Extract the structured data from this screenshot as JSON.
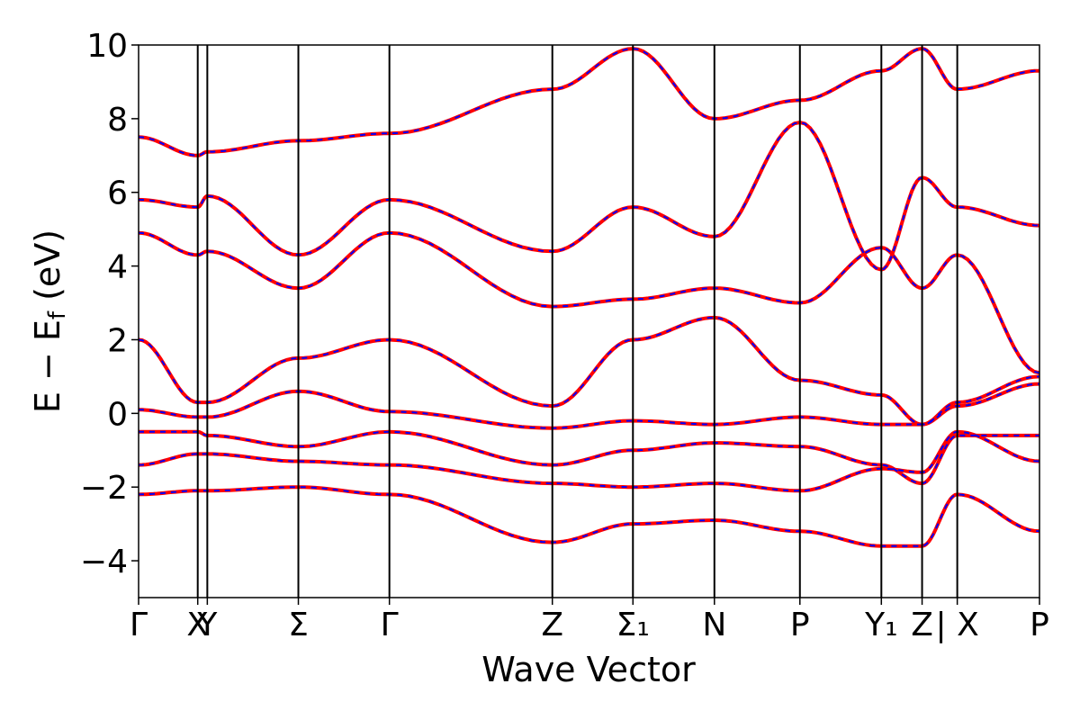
{
  "chart_data": {
    "type": "line",
    "xlabel": "Wave Vector",
    "ylabel": "E − E_f (eV)",
    "ylabel_main": "E − E",
    "ylabel_sub": "f",
    "ylabel_unit": " (eV)",
    "ylim": [
      -5,
      10
    ],
    "yticks": [
      {
        "value": 10,
        "label": "10"
      },
      {
        "value": 8,
        "label": "8"
      },
      {
        "value": 6,
        "label": "6"
      },
      {
        "value": 4,
        "label": "4"
      },
      {
        "value": 2,
        "label": "2"
      },
      {
        "value": 0,
        "label": "0"
      },
      {
        "value": -2,
        "label": "−2"
      },
      {
        "value": -4,
        "label": "−4"
      }
    ],
    "kpoints": [
      {
        "pos": 0.0,
        "label": "Γ"
      },
      {
        "pos": 0.0617,
        "label": "X"
      },
      {
        "pos": 0.0717,
        "label": "Y"
      },
      {
        "pos": 0.1667,
        "label": "Σ"
      },
      {
        "pos": 0.2617,
        "label": "Γ"
      },
      {
        "pos": 0.4317,
        "label": "Z"
      },
      {
        "pos": 0.5158,
        "label": "Σ₁"
      },
      {
        "pos": 0.6008,
        "label": "N"
      },
      {
        "pos": 0.69,
        "label": "P"
      },
      {
        "pos": 0.775,
        "label": "Y₁"
      },
      {
        "pos": 0.8175,
        "label": "Z"
      },
      {
        "pos": 0.8542,
        "label": "| X"
      },
      {
        "pos": 0.94,
        "label": "P"
      }
    ],
    "xlim": [
      0.0,
      0.94
    ],
    "grid": false,
    "series": [
      {
        "color": "#ff0000",
        "style": "solid",
        "bands": [
          {
            "x": [
              0.0,
              0.0617,
              0.0717,
              0.1667,
              0.2617,
              0.4317,
              0.5158,
              0.6008,
              0.69,
              0.775,
              0.8175,
              0.8542,
              0.94
            ],
            "y": [
              -2.2,
              -2.1,
              -2.1,
              -2.0,
              -2.2,
              -3.5,
              -3.0,
              -2.9,
              -3.2,
              -3.6,
              -3.6,
              -2.2,
              -3.2
            ]
          },
          {
            "x": [
              0.0,
              0.0617,
              0.0717,
              0.1667,
              0.2617,
              0.4317,
              0.5158,
              0.6008,
              0.69,
              0.775,
              0.8175,
              0.8542,
              0.94
            ],
            "y": [
              -1.4,
              -1.1,
              -1.1,
              -1.3,
              -1.4,
              -1.9,
              -2.0,
              -1.9,
              -2.1,
              -1.5,
              -1.6,
              -0.5,
              -1.3
            ]
          },
          {
            "x": [
              0.0,
              0.0617,
              0.0717,
              0.1667,
              0.2617,
              0.4317,
              0.5158,
              0.6008,
              0.69,
              0.775,
              0.8175,
              0.8542,
              0.94
            ],
            "y": [
              -0.5,
              -0.5,
              -0.6,
              -0.9,
              -0.5,
              -1.4,
              -1.0,
              -0.8,
              -0.9,
              -1.4,
              -1.9,
              -0.6,
              -0.6
            ]
          },
          {
            "x": [
              0.0,
              0.0617,
              0.0717,
              0.1667,
              0.2617,
              0.4317,
              0.5158,
              0.6008,
              0.69,
              0.775,
              0.8175,
              0.8542,
              0.94
            ],
            "y": [
              0.1,
              -0.1,
              -0.1,
              0.6,
              0.05,
              -0.4,
              -0.2,
              -0.3,
              -0.1,
              -0.3,
              -0.3,
              0.2,
              0.8
            ]
          },
          {
            "x": [
              0.0,
              0.0617,
              0.0717,
              0.1667,
              0.2617,
              0.4317,
              0.5158,
              0.6008,
              0.69,
              0.775,
              0.8175,
              0.8542,
              0.94
            ],
            "y": [
              2.0,
              0.3,
              0.3,
              1.5,
              2.0,
              0.2,
              2.0,
              2.6,
              0.9,
              0.5,
              -0.3,
              0.3,
              1.0
            ]
          },
          {
            "x": [
              0.0,
              0.0617,
              0.0717,
              0.1667,
              0.2617,
              0.4317,
              0.5158,
              0.6008,
              0.69,
              0.775,
              0.8175,
              0.8542,
              0.94
            ],
            "y": [
              4.9,
              4.3,
              4.4,
              3.4,
              4.9,
              2.9,
              3.1,
              3.4,
              3.0,
              4.5,
              3.4,
              4.3,
              1.1
            ]
          },
          {
            "x": [
              0.0,
              0.0617,
              0.0717,
              0.1667,
              0.2617,
              0.4317,
              0.5158,
              0.6008,
              0.69,
              0.775,
              0.8175,
              0.8542,
              0.94
            ],
            "y": [
              5.8,
              5.6,
              5.9,
              4.3,
              5.8,
              4.4,
              5.6,
              4.8,
              7.9,
              3.9,
              6.4,
              5.6,
              5.1
            ]
          },
          {
            "x": [
              0.0,
              0.0617,
              0.0717,
              0.1667,
              0.2617,
              0.4317,
              0.5158,
              0.6008,
              0.69,
              0.775,
              0.8175,
              0.8542,
              0.94
            ],
            "y": [
              7.5,
              7.0,
              7.1,
              7.4,
              7.6,
              8.8,
              9.9,
              8.0,
              8.5,
              9.3,
              9.9,
              8.8,
              9.3
            ]
          }
        ]
      },
      {
        "color": "#0000ff",
        "style": "dashed",
        "bands": "same"
      }
    ]
  }
}
